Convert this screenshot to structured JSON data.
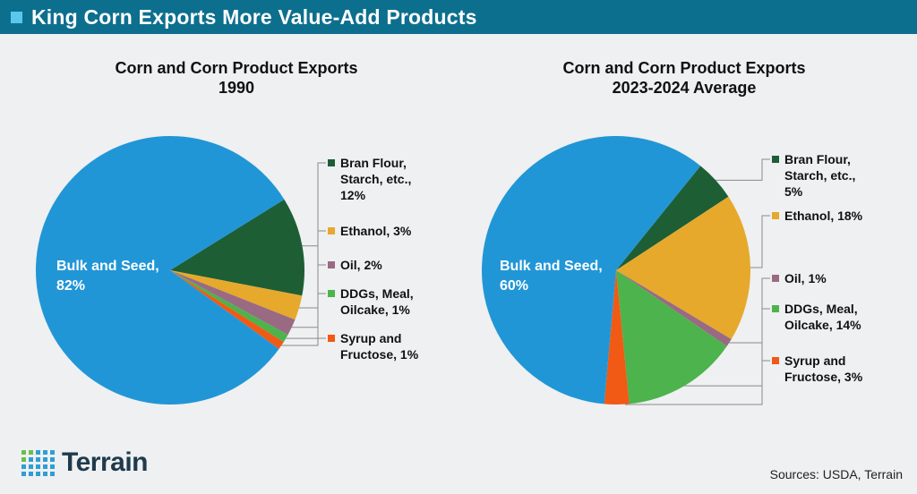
{
  "header": {
    "title": "King Corn Exports More Value-Add Products"
  },
  "footer": {
    "brand": "Terrain",
    "sources": "Sources: USDA, Terrain"
  },
  "colors": {
    "bulk": "#2196d6",
    "bran": "#1e5e35",
    "ethanol": "#e6a92c",
    "oil": "#9a6a83",
    "ddgs": "#4db34c",
    "syrup": "#f05a14"
  },
  "chart_data": [
    {
      "type": "pie",
      "title": [
        "Corn and Corn Product Exports",
        "1990"
      ],
      "slices": [
        {
          "key": "bulk",
          "label": [
            "Bulk and Seed,",
            "82%"
          ],
          "value": 82
        },
        {
          "key": "bran",
          "label": [
            "Bran Flour,",
            "Starch, etc.,",
            "12%"
          ],
          "value": 12
        },
        {
          "key": "ethanol",
          "label": [
            "Ethanol, 3%"
          ],
          "value": 3
        },
        {
          "key": "oil",
          "label": [
            "Oil, 2%"
          ],
          "value": 2
        },
        {
          "key": "ddgs",
          "label": [
            "DDGs, Meal,",
            "Oilcake, 1%"
          ],
          "value": 1
        },
        {
          "key": "syrup",
          "label": [
            "Syrup and",
            "Fructose, 1%"
          ],
          "value": 1
        }
      ]
    },
    {
      "type": "pie",
      "title": [
        "Corn and Corn Product Exports",
        "2023-2024 Average"
      ],
      "slices": [
        {
          "key": "bulk",
          "label": [
            "Bulk and Seed,",
            "60%"
          ],
          "value": 60
        },
        {
          "key": "bran",
          "label": [
            "Bran Flour,",
            "Starch, etc.,",
            "5%"
          ],
          "value": 5
        },
        {
          "key": "ethanol",
          "label": [
            "Ethanol, 18%"
          ],
          "value": 18
        },
        {
          "key": "oil",
          "label": [
            "Oil, 1%"
          ],
          "value": 1
        },
        {
          "key": "ddgs",
          "label": [
            "DDGs, Meal,",
            "Oilcake, 14%"
          ],
          "value": 14
        },
        {
          "key": "syrup",
          "label": [
            "Syrup and",
            "Fructose, 3%"
          ],
          "value": 3
        }
      ]
    }
  ]
}
